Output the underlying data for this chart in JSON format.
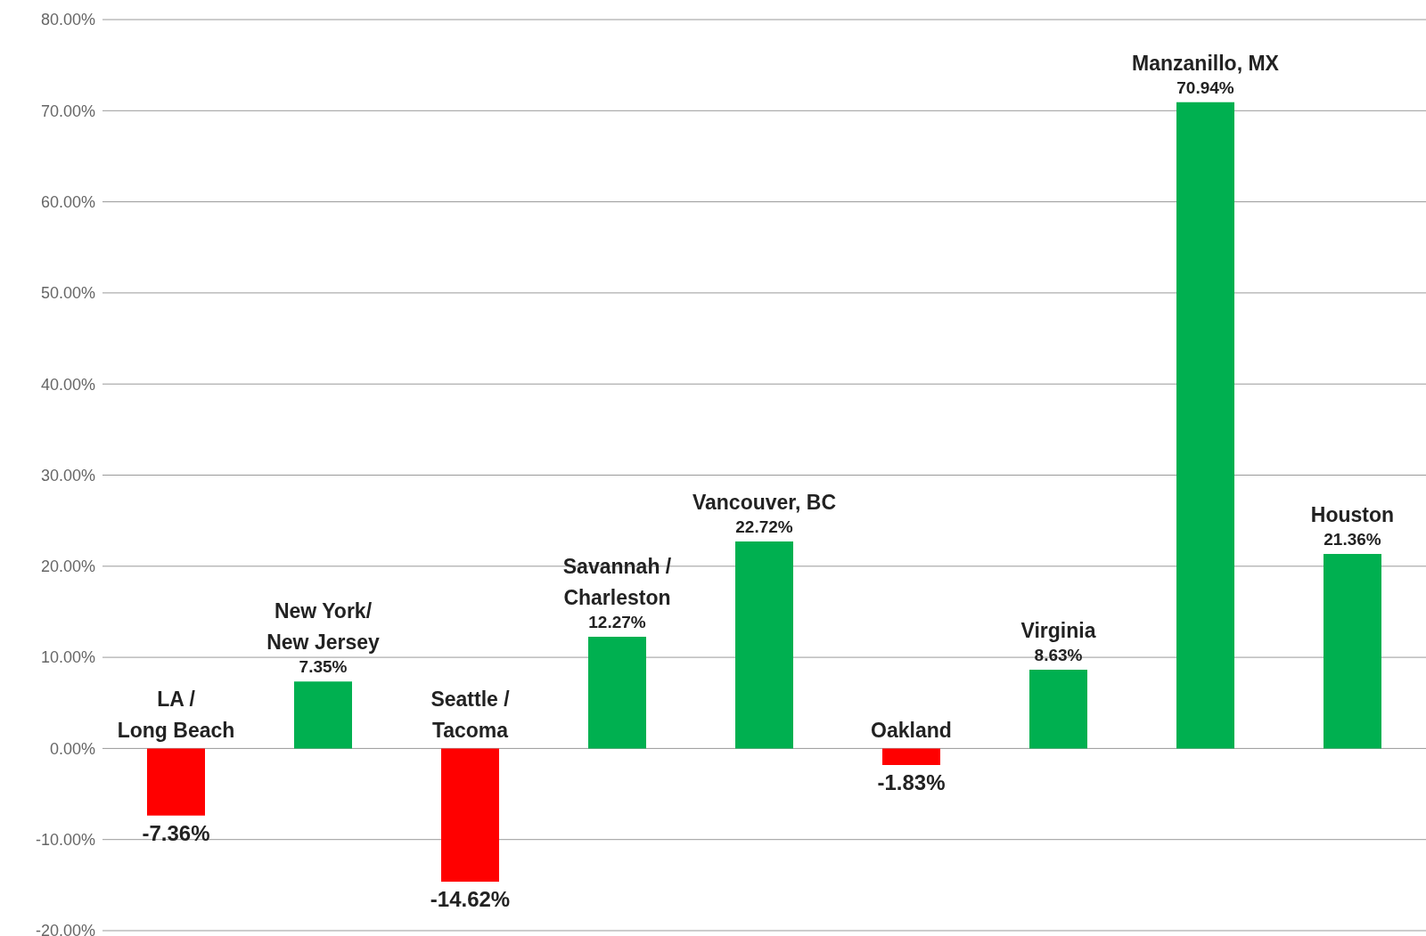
{
  "chart_data": {
    "type": "bar",
    "categories": [
      "LA / Long Beach",
      "New York/ New Jersey",
      "Seattle / Tacoma",
      "Savannah / Charleston",
      "Vancouver, BC",
      "Oakland",
      "Virginia",
      "Manzanillo, MX",
      "Houston"
    ],
    "values": [
      -7.36,
      7.35,
      -14.62,
      12.27,
      22.72,
      -1.83,
      8.63,
      70.94,
      21.36
    ],
    "value_labels": [
      "-7.36%",
      "7.35%",
      "-14.62%",
      "12.27%",
      "22.72%",
      "-1.83%",
      "8.63%",
      "70.94%",
      "21.36%"
    ],
    "colors": [
      "#ff0000",
      "#00b050",
      "#ff0000",
      "#00b050",
      "#00b050",
      "#ff0000",
      "#00b050",
      "#00b050",
      "#00b050"
    ],
    "ylim": [
      -20,
      80
    ],
    "yticks": [
      {
        "value": -20,
        "label": "-20.00%"
      },
      {
        "value": -10,
        "label": "-10.00%"
      },
      {
        "value": 0,
        "label": "0.00%"
      },
      {
        "value": 10,
        "label": "10.00%"
      },
      {
        "value": 20,
        "label": "20.00%"
      },
      {
        "value": 30,
        "label": "30.00%"
      },
      {
        "value": 40,
        "label": "40.00%"
      },
      {
        "value": 50,
        "label": "50.00%"
      },
      {
        "value": 60,
        "label": "60.00%"
      },
      {
        "value": 70,
        "label": "70.00%"
      },
      {
        "value": 80,
        "label": "80.00%"
      }
    ],
    "grid": "y",
    "legend": false
  }
}
